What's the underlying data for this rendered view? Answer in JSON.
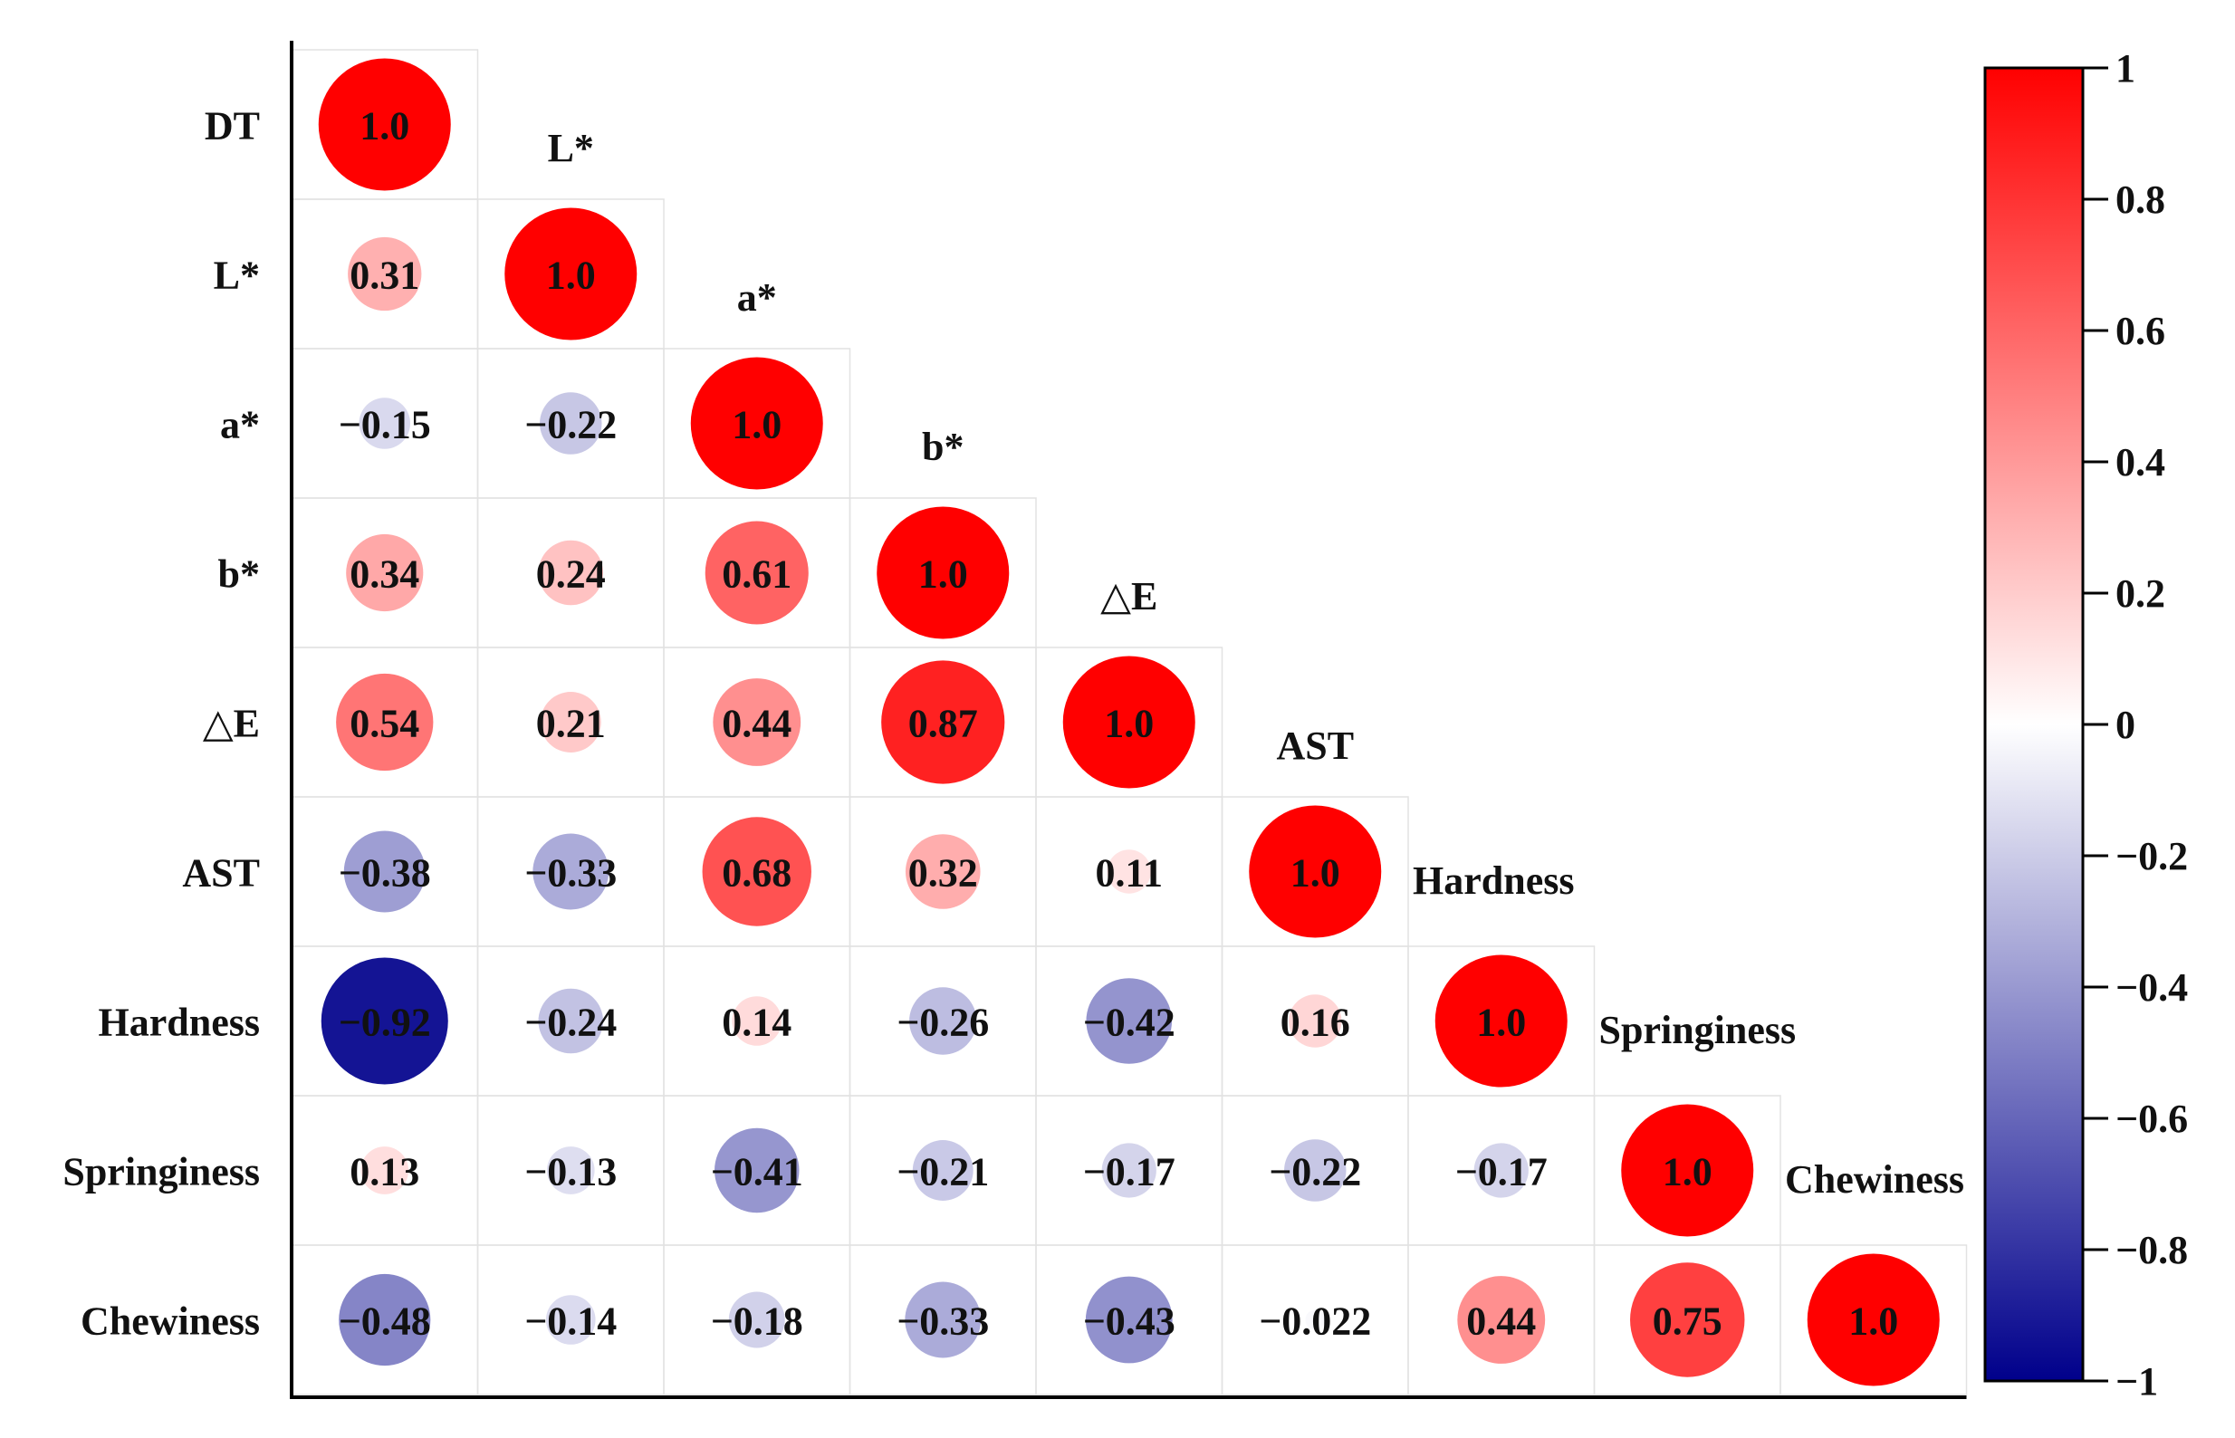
{
  "chart_data": {
    "type": "heatmap",
    "subtype": "correlation-circle-lower-triangle",
    "variables": [
      "DT",
      "L*",
      "a*",
      "b*",
      "△E",
      "AST",
      "Hardness",
      "Springiness",
      "Chewiness"
    ],
    "matrix": [
      [
        "1.0"
      ],
      [
        "0.31",
        "1.0"
      ],
      [
        "−0.15",
        "−0.22",
        "1.0"
      ],
      [
        "0.34",
        "0.24",
        "0.61",
        "1.0"
      ],
      [
        "0.54",
        "0.21",
        "0.44",
        "0.87",
        "1.0"
      ],
      [
        "−0.38",
        "−0.33",
        "0.68",
        "0.32",
        "0.11",
        "1.0"
      ],
      [
        "−0.92",
        "−0.24",
        "0.14",
        "−0.26",
        "−0.42",
        "0.16",
        "1.0"
      ],
      [
        "0.13",
        "−0.13",
        "−0.41",
        "−0.21",
        "−0.17",
        "−0.22",
        "−0.17",
        "1.0"
      ],
      [
        "−0.48",
        "−0.14",
        "−0.18",
        "−0.33",
        "−0.43",
        "−0.022",
        "0.44",
        "0.75",
        "1.0"
      ]
    ],
    "colorbar": {
      "range": [
        -1,
        1
      ],
      "ticks": [
        "1",
        "0.8",
        "0.6",
        "0.4",
        "0.2",
        "0",
        "−0.2",
        "−0.4",
        "−0.6",
        "−0.8",
        "−1"
      ],
      "colors": {
        "positive": "#ff0000",
        "zero": "#ffffff",
        "negative": "#00008b"
      }
    }
  }
}
